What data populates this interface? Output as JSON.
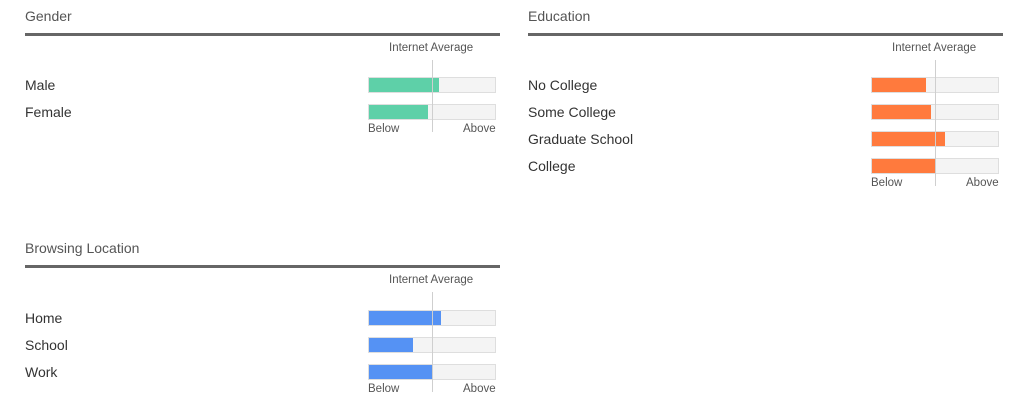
{
  "avg_label": "Internet Average",
  "below_label": "Below",
  "above_label": "Above",
  "chart_data": [
    {
      "type": "bar",
      "title": "Gender",
      "color": "#5ed0a8",
      "categories": [
        "Male",
        "Female"
      ],
      "values": [
        0.55,
        0.46
      ],
      "baseline": 0.5
    },
    {
      "type": "bar",
      "title": "Education",
      "color": "#ff7a3d",
      "categories": [
        "No College",
        "Some College",
        "Graduate School",
        "College"
      ],
      "values": [
        0.42,
        0.46,
        0.57,
        0.49
      ],
      "baseline": 0.5
    },
    {
      "type": "bar",
      "title": "Browsing Location",
      "color": "#5592f4",
      "categories": [
        "Home",
        "School",
        "Work"
      ],
      "values": [
        0.56,
        0.34,
        0.49
      ],
      "baseline": 0.5
    }
  ]
}
